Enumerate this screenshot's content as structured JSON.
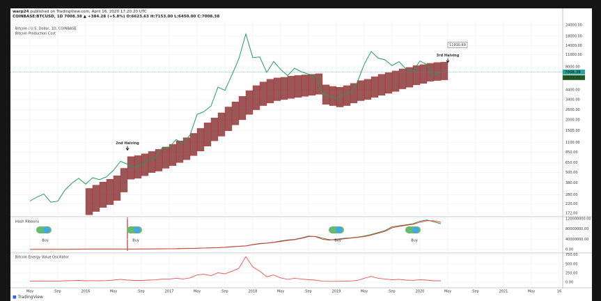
{
  "header": {
    "author": "warp24",
    "published": "published on TradingView.com, April 16, 2020 17:20:20 UTC",
    "symbol_line": "COINBASE:BTCUSD, 1D 7008.38 ▲ +384.28 (+5.8%) O:6623.63 H:7153.00 L:6450.00 C:7008.38"
  },
  "footer": {
    "brand": "TradingView"
  },
  "chart_data": {
    "type": "line",
    "grid": true,
    "x": [
      "2015-05",
      "2015-06",
      "2015-07",
      "2015-08",
      "2015-09",
      "2015-10",
      "2015-11",
      "2015-12",
      "2016-01",
      "2016-02",
      "2016-03",
      "2016-04",
      "2016-05",
      "2016-06",
      "2016-07",
      "2016-08",
      "2016-09",
      "2016-10",
      "2016-11",
      "2016-12",
      "2017-01",
      "2017-02",
      "2017-03",
      "2017-04",
      "2017-05",
      "2017-06",
      "2017-07",
      "2017-08",
      "2017-09",
      "2017-10",
      "2017-11",
      "2017-12",
      "2018-01",
      "2018-02",
      "2018-03",
      "2018-04",
      "2018-05",
      "2018-06",
      "2018-07",
      "2018-08",
      "2018-09",
      "2018-10",
      "2018-11",
      "2018-12",
      "2019-01",
      "2019-02",
      "2019-03",
      "2019-04",
      "2019-05",
      "2019-06",
      "2019-07",
      "2019-08",
      "2019-09",
      "2019-10",
      "2019-11",
      "2019-12",
      "2020-01",
      "2020-02",
      "2020-03",
      "2020-04"
    ],
    "xlim": [
      "2015-03",
      "2021-09"
    ],
    "xticks": [
      {
        "value": "2015-05",
        "label": "May"
      },
      {
        "value": "2015-09",
        "label": "Sep"
      },
      {
        "value": "2016-01",
        "label": "2016"
      },
      {
        "value": "2016-05",
        "label": "May"
      },
      {
        "value": "2016-09",
        "label": "Sep"
      },
      {
        "value": "2017-01",
        "label": "2017"
      },
      {
        "value": "2017-05",
        "label": "May"
      },
      {
        "value": "2017-09",
        "label": "Sep"
      },
      {
        "value": "2018-01",
        "label": "2018"
      },
      {
        "value": "2018-05",
        "label": "May"
      },
      {
        "value": "2018-09",
        "label": "Sep"
      },
      {
        "value": "2019-01",
        "label": "2019"
      },
      {
        "value": "2019-05",
        "label": "May"
      },
      {
        "value": "2019-09",
        "label": "Sep"
      },
      {
        "value": "2020-01",
        "label": "2020"
      },
      {
        "value": "2020-05",
        "label": "May"
      },
      {
        "value": "2020-09",
        "label": "Sep"
      },
      {
        "value": "2021-01",
        "label": "2021"
      },
      {
        "value": "2021-05",
        "label": "May"
      },
      {
        "value": "2021-09",
        "label": "16"
      }
    ],
    "panels": [
      {
        "type": "line",
        "title": "Bitcoin / U.S. Dollar, 1D, COINBASE",
        "subtitle": "Bitcoin Production Cost",
        "log_scale": true,
        "ylim": [
          160,
          26800
        ],
        "yticks": [
          {
            "value": 24000,
            "label": "24000.00"
          },
          {
            "value": 18000,
            "label": "18000.00"
          },
          {
            "value": 14000,
            "label": "14000.00"
          },
          {
            "value": 11000,
            "label": "11000.00"
          },
          {
            "value": 8000,
            "label": "8000.00"
          },
          {
            "value": 4400,
            "label": "4400.00"
          },
          {
            "value": 3400,
            "label": "3400.00"
          },
          {
            "value": 2600,
            "label": "2600.00"
          },
          {
            "value": 2000,
            "label": "2000.00"
          },
          {
            "value": 1500,
            "label": "1500.00"
          },
          {
            "value": 1100,
            "label": "1100.00"
          },
          {
            "value": 850,
            "label": "850.00"
          },
          {
            "value": 650,
            "label": "650.00"
          },
          {
            "value": 500,
            "label": "500.00"
          },
          {
            "value": 380,
            "label": "380.00"
          },
          {
            "value": 280,
            "label": "280.00"
          },
          {
            "value": 220,
            "label": "220.00"
          },
          {
            "value": 172,
            "label": "172.00"
          }
        ],
        "series": [
          {
            "color": "#1e9e5a",
            "values": [
              237,
              263,
              284,
              230,
              236,
              314,
              377,
              430,
              369,
              437,
              416,
              448,
              531,
              673,
              624,
              573,
              609,
              701,
              742,
              963,
              970,
              1190,
              1080,
              1348,
              2300,
              2480,
              2875,
              4703,
              4339,
              6468,
              9947,
              19000,
              10221,
              10397,
              6928,
              9240,
              7494,
              6391,
              7729,
              7033,
              6626,
              6317,
              4016,
              3742,
              3457,
              3854,
              4105,
              5350,
              8574,
              12000,
              10085,
              9630,
              8293,
              9199,
              7569,
              7193,
              9350,
              8543,
              6424,
              7008
            ]
          }
        ],
        "band": {
          "color": "#7a1f1f",
          "edge": "#c62828",
          "low": [
            null,
            null,
            null,
            null,
            null,
            null,
            null,
            null,
            165,
            180,
            200,
            215,
            240,
            300,
            420,
            430,
            460,
            500,
            520,
            560,
            600,
            650,
            700,
            780,
            880,
            1000,
            1150,
            1300,
            1500,
            1750,
            2000,
            2300,
            2600,
            2900,
            3100,
            3300,
            3400,
            3500,
            3600,
            3700,
            3800,
            3900,
            3000,
            2900,
            2800,
            2900,
            3100,
            3300,
            3400,
            3600,
            3800,
            4000,
            4200,
            4500,
            4700,
            5000,
            5200,
            5500,
            5600,
            5700
          ],
          "high": [
            null,
            null,
            null,
            null,
            null,
            null,
            null,
            null,
            330,
            360,
            390,
            420,
            460,
            560,
            760,
            780,
            820,
            870,
            920,
            980,
            1050,
            1150,
            1250,
            1400,
            1600,
            1850,
            2100,
            2400,
            2800,
            3200,
            3700,
            4300,
            4900,
            5400,
            5800,
            6000,
            6100,
            6300,
            6400,
            6500,
            6600,
            6700,
            5000,
            4800,
            4700,
            4900,
            5200,
            5600,
            5800,
            6200,
            6600,
            6900,
            7200,
            7600,
            7900,
            8300,
            8500,
            8800,
            9000,
            9100
          ]
        },
        "annotations": [
          {
            "text": "2nd Halving",
            "x": "2016-07",
            "y": 900
          },
          {
            "text": "3rd Halving",
            "x": "2020-05",
            "y": 9000
          }
        ],
        "callout": {
          "value": 11910.69,
          "x": "2020-05"
        },
        "last_values": [
          {
            "value": 7008.38,
            "color": "#26a69a"
          },
          {
            "value": 6679.41,
            "color": "#1b5e20"
          }
        ]
      },
      {
        "type": "line",
        "title": "Hash Ribbons",
        "ylim": [
          -11000000,
          125000000
        ],
        "yticks": [
          {
            "value": 120000000,
            "label": "120000000.00"
          },
          {
            "value": 80000000,
            "label": "80000000.00"
          },
          {
            "value": 40000000,
            "label": "40000000.00"
          },
          {
            "value": 0,
            "label": "0.00"
          }
        ],
        "series": [
          {
            "color": "#2e7d32",
            "values": [
              350000,
              370000,
              400000,
              430000,
              460000,
              520000,
              620000,
              780000,
              900000,
              1100000,
              1200000,
              1300000,
              1400000,
              1500000,
              1500000,
              1600000,
              1700000,
              1900000,
              2000000,
              2200000,
              2600000,
              3000000,
              3500000,
              4000000,
              4600000,
              5500000,
              6300000,
              6900000,
              8500000,
              11000000,
              12500000,
              14000000,
              19000000,
              23000000,
              25000000,
              28000000,
              33000000,
              37000000,
              39000000,
              45000000,
              52000000,
              50000000,
              40000000,
              36000000,
              40000000,
              43000000,
              45000000,
              48000000,
              52000000,
              58000000,
              66000000,
              74000000,
              88000000,
              92000000,
              96000000,
              100000000,
              110000000,
              115000000,
              108000000,
              100000000
            ]
          },
          {
            "color": "#e53935",
            "values": [
              340000,
              360000,
              390000,
              420000,
              450000,
              500000,
              590000,
              740000,
              860000,
              1050000,
              1150000,
              1250000,
              1350000,
              1450000,
              1500000,
              1550000,
              1650000,
              1850000,
              1950000,
              2100000,
              2500000,
              2900000,
              3300000,
              3800000,
              4400000,
              5200000,
              6000000,
              6700000,
              8000000,
              10000000,
              12000000,
              13500000,
              18000000,
              22000000,
              24000000,
              27000000,
              31000000,
              35000000,
              38000000,
              43000000,
              50000000,
              51000000,
              44000000,
              38000000,
              37000000,
              41000000,
              44000000,
              47000000,
              50000000,
              56000000,
              63000000,
              71000000,
              84000000,
              90000000,
              94000000,
              98000000,
              106000000,
              112000000,
              112000000,
              106000000
            ]
          }
        ],
        "signals": [
          {
            "x": "2015-07",
            "label": "Buy"
          },
          {
            "x": "2016-08",
            "label": "Buy"
          },
          {
            "x": "2019-01",
            "label": "Buy"
          },
          {
            "x": "2019-12",
            "label": "Buy"
          }
        ]
      },
      {
        "type": "line",
        "title": "Bitcoin Energy Value Oscillator",
        "ylim": [
          -130,
          800
        ],
        "yticks": [
          {
            "value": 750,
            "label": "750.00"
          },
          {
            "value": 500,
            "label": "500.00"
          },
          {
            "value": 250,
            "label": "250.00"
          },
          {
            "value": 0,
            "label": "0.00"
          }
        ],
        "series": [
          {
            "color": "#ef5350",
            "values": [
              30,
              30,
              35,
              30,
              30,
              40,
              45,
              50,
              40,
              45,
              40,
              45,
              60,
              80,
              60,
              50,
              50,
              60,
              65,
              90,
              90,
              110,
              90,
              120,
              200,
              220,
              180,
              260,
              230,
              300,
              380,
              700,
              420,
              300,
              150,
              200,
              120,
              80,
              110,
              90,
              70,
              60,
              30,
              25,
              25,
              30,
              35,
              50,
              110,
              160,
              110,
              90,
              70,
              80,
              60,
              55,
              70,
              60,
              40,
              40
            ]
          }
        ]
      }
    ]
  }
}
